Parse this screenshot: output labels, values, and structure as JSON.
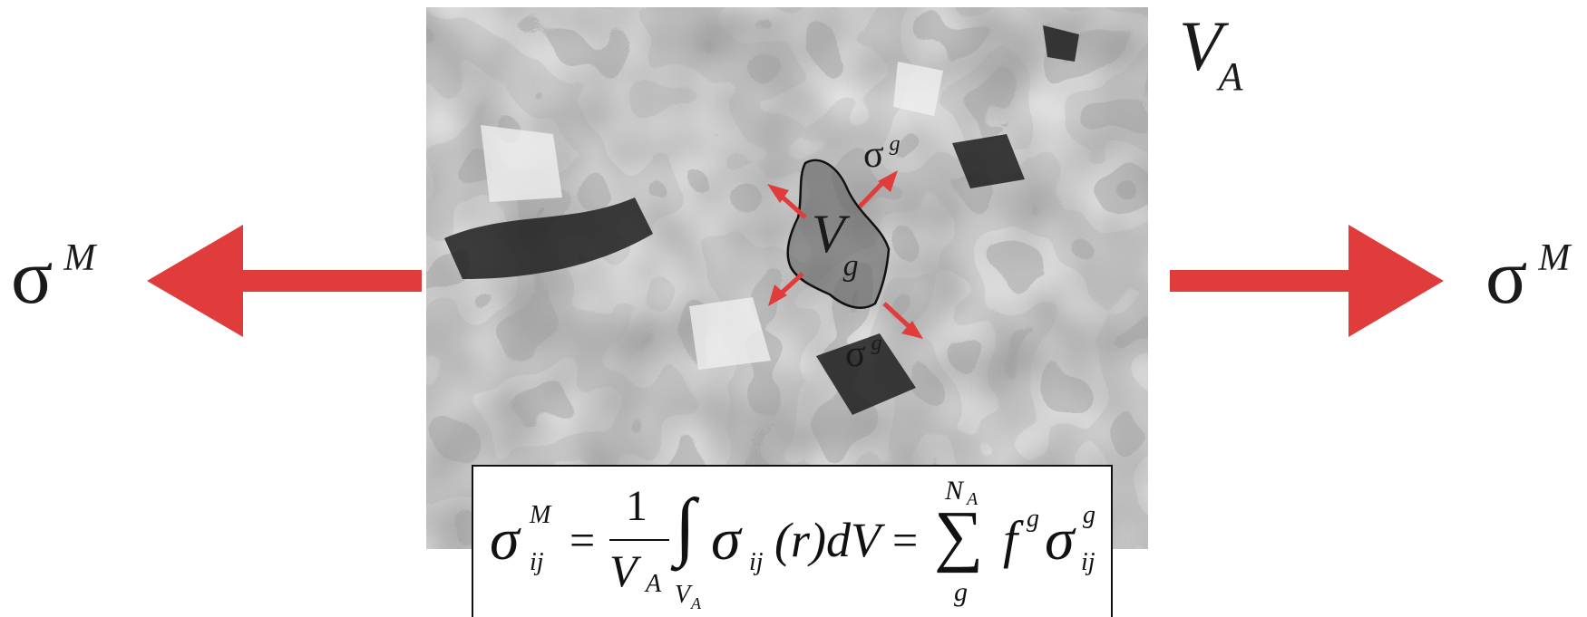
{
  "labels": {
    "volume_A": {
      "main": "V",
      "sub": "A"
    },
    "grain_volume": {
      "main": "V",
      "sub": "g"
    },
    "grain_stress_top": {
      "main": "σ",
      "sup": "g"
    },
    "grain_stress_bottom": {
      "main": "σ",
      "sup": "g"
    },
    "macro_stress_left": {
      "main": "σ",
      "sup": "M"
    },
    "macro_stress_right": {
      "main": "σ",
      "sup": "M"
    }
  },
  "formula": {
    "lhs": {
      "main": "σ",
      "sup": "M",
      "sub": "ij"
    },
    "eq1": "=",
    "frac_num": "1",
    "frac_den": {
      "main": "V",
      "sub": "A"
    },
    "integral": "∫",
    "integral_lower": {
      "main": "V",
      "sub": "A"
    },
    "integrand": {
      "main": "σ",
      "sub": "ij",
      "rest": "(r)dV"
    },
    "eq2": "=",
    "sum": "∑",
    "sum_upper": {
      "main": "N",
      "sub": "A"
    },
    "sum_lower": "g",
    "term": {
      "f": "f",
      "f_sup": "g",
      "sigma": "σ",
      "sigma_sup": "g",
      "sigma_sub": "ij"
    }
  },
  "colors": {
    "arrow": "#e03c3c",
    "text": "#111111",
    "grain_outline": "#111111"
  }
}
